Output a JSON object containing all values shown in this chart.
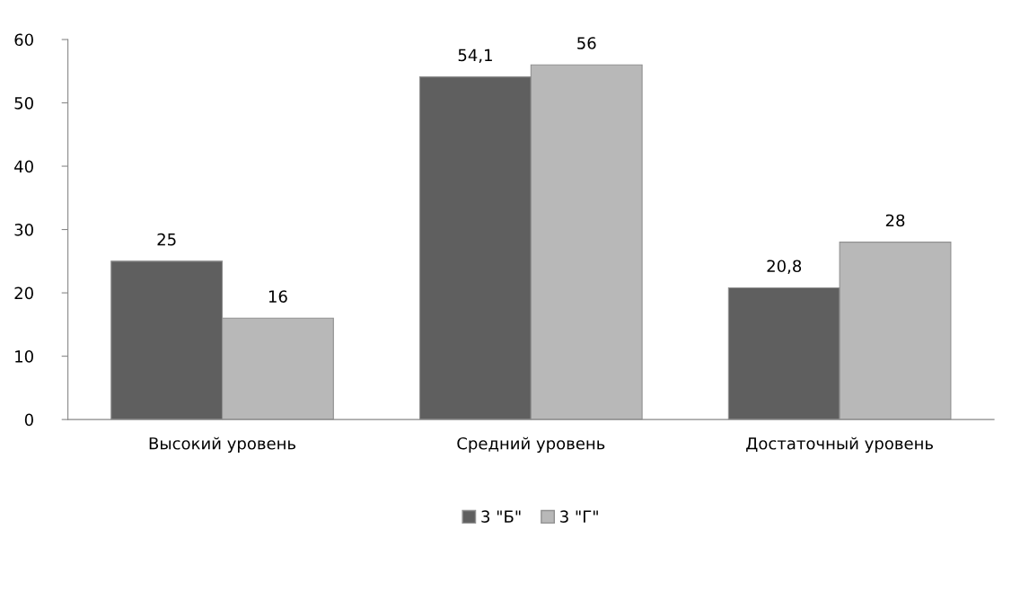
{
  "chart_data": {
    "type": "bar",
    "categories": [
      "Высокий уровень",
      "Средний уровень",
      "Достаточный уровень"
    ],
    "series": [
      {
        "name": "3 \"Б\"",
        "color": "#5f5f5f",
        "values": [
          25,
          54.1,
          20.8
        ],
        "value_labels": [
          "25",
          "54,1",
          "20,8"
        ]
      },
      {
        "name": "3 \"Г\"",
        "color": "#b8b8b8",
        "values": [
          16,
          56,
          28
        ],
        "value_labels": [
          "16",
          "56",
          "28"
        ]
      }
    ],
    "ylim": [
      0,
      60
    ],
    "yticks": [
      0,
      10,
      20,
      30,
      40,
      50,
      60
    ],
    "grid": false,
    "legend": "bottom"
  }
}
